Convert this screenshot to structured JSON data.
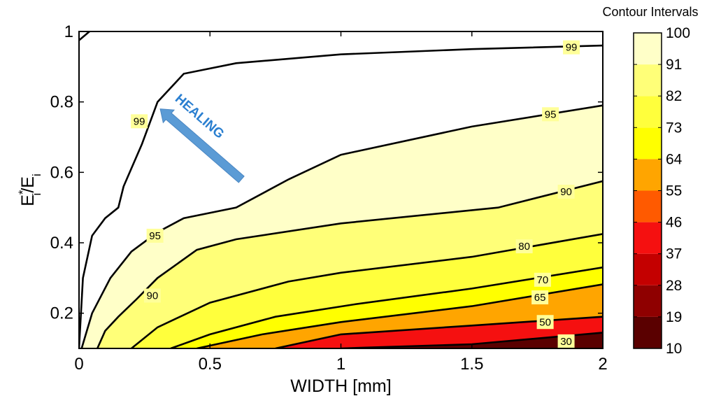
{
  "chart_data": {
    "type": "contour",
    "xlabel": "WIDTH [mm]",
    "ylabel_main": "E",
    "ylabel_sup": "*",
    "ylabel_sub": "i",
    "ylabel_slash": "/E",
    "ylabel_sub2": "i",
    "xlim": [
      0,
      2
    ],
    "ylim": [
      0.1,
      1
    ],
    "x_ticks": [
      0,
      0.5,
      1,
      1.5,
      2
    ],
    "x_tick_labels": [
      "0",
      "0.5",
      "1",
      "1.5",
      "2"
    ],
    "y_ticks": [
      0.2,
      0.4,
      0.6,
      0.8,
      1
    ],
    "y_tick_labels": [
      "0.2",
      "0.4",
      "0.6",
      "0.8",
      "1"
    ],
    "colorbar": {
      "title": "Contour Intervals",
      "levels": [
        10,
        19,
        28,
        37,
        46,
        55,
        64,
        73,
        82,
        91,
        100
      ],
      "level_labels": [
        "10",
        "19",
        "28",
        "37",
        "46",
        "55",
        "64",
        "73",
        "82",
        "91",
        "100"
      ],
      "colors": [
        "#5a0000",
        "#8f0000",
        "#c40000",
        "#f51010",
        "#ff5a00",
        "#ffa500",
        "#ffff00",
        "#ffff3c",
        "#ffff78",
        "#ffffc8"
      ]
    },
    "contours": [
      {
        "level": 30,
        "label": "30",
        "label_at": [
          1.86,
          0.12
        ],
        "fill": "#5a0000",
        "points": [
          [
            1.0,
            0.1
          ],
          [
            1.5,
            0.112
          ],
          [
            2.0,
            0.145
          ],
          [
            2.0,
            0.1
          ]
        ]
      },
      {
        "level": 50,
        "label": "50",
        "label_at": [
          1.78,
          0.175
        ],
        "fill": "#f51010",
        "points": [
          [
            0.75,
            0.1
          ],
          [
            1.0,
            0.14
          ],
          [
            1.5,
            0.165
          ],
          [
            2.0,
            0.19
          ],
          [
            2.0,
            0.1
          ]
        ]
      },
      {
        "level": 65,
        "label": "65",
        "label_at": [
          1.76,
          0.245
        ],
        "fill": "#ffa500",
        "points": [
          [
            0.45,
            0.1
          ],
          [
            0.7,
            0.14
          ],
          [
            1.0,
            0.175
          ],
          [
            1.5,
            0.22
          ],
          [
            2.0,
            0.282
          ],
          [
            2.0,
            0.1
          ]
        ]
      },
      {
        "level": 70,
        "label": "70",
        "label_at": [
          1.77,
          0.295
        ],
        "fill": "#ffff00",
        "points": [
          [
            0.35,
            0.1
          ],
          [
            0.5,
            0.14
          ],
          [
            0.75,
            0.19
          ],
          [
            1.05,
            0.225
          ],
          [
            1.5,
            0.27
          ],
          [
            2.0,
            0.33
          ],
          [
            2.0,
            0.1
          ]
        ]
      },
      {
        "level": 80,
        "label": "80",
        "label_at": [
          1.7,
          0.39
        ],
        "fill": "#ffff3c",
        "points": [
          [
            0.2,
            0.1
          ],
          [
            0.3,
            0.16
          ],
          [
            0.5,
            0.23
          ],
          [
            0.8,
            0.29
          ],
          [
            1.0,
            0.315
          ],
          [
            1.5,
            0.36
          ],
          [
            2.0,
            0.425
          ],
          [
            2.0,
            0.1
          ]
        ]
      },
      {
        "level": 90,
        "label": "90",
        "label_at": [
          1.86,
          0.545
        ],
        "fill": "#ffff78",
        "points": [
          [
            0.07,
            0.1
          ],
          [
            0.1,
            0.15
          ],
          [
            0.15,
            0.19
          ],
          [
            0.22,
            0.24
          ],
          [
            0.3,
            0.3
          ],
          [
            0.45,
            0.38
          ],
          [
            0.6,
            0.41
          ],
          [
            1.0,
            0.455
          ],
          [
            1.6,
            0.5
          ],
          [
            2.0,
            0.575
          ],
          [
            2.0,
            0.1
          ]
        ]
      },
      {
        "level": 95,
        "label": "95",
        "label_at": [
          1.8,
          0.765
        ],
        "fill": "#ffffc8",
        "points": [
          [
            0.01,
            0.1
          ],
          [
            0.05,
            0.2
          ],
          [
            0.12,
            0.3
          ],
          [
            0.2,
            0.375
          ],
          [
            0.3,
            0.43
          ],
          [
            0.4,
            0.47
          ],
          [
            0.6,
            0.5
          ],
          [
            0.8,
            0.58
          ],
          [
            1.0,
            0.65
          ],
          [
            1.5,
            0.73
          ],
          [
            2.0,
            0.79
          ],
          [
            2.0,
            0.1
          ]
        ]
      },
      {
        "level": 99,
        "label": "99",
        "label_at": [
          1.88,
          0.955
        ],
        "fill": "#ffffff",
        "points": [
          [
            0.0,
            0.1
          ],
          [
            0.015,
            0.3
          ],
          [
            0.05,
            0.42
          ],
          [
            0.1,
            0.47
          ],
          [
            0.15,
            0.5
          ],
          [
            0.17,
            0.56
          ],
          [
            0.24,
            0.68
          ],
          [
            0.3,
            0.8
          ],
          [
            0.4,
            0.88
          ],
          [
            0.6,
            0.91
          ],
          [
            1.0,
            0.935
          ],
          [
            1.5,
            0.95
          ],
          [
            2.0,
            0.96
          ],
          [
            2.0,
            1.0
          ],
          [
            0.0,
            1.0
          ]
        ]
      }
    ],
    "extra_line_points": [
      [
        0.0,
        0.975
      ],
      [
        0.04,
        1.0
      ]
    ],
    "extra_labels": [
      {
        "label": "99",
        "label_at": [
          0.23,
          0.745
        ]
      },
      {
        "label": "95",
        "label_at": [
          0.29,
          0.42
        ]
      },
      {
        "label": "90",
        "label_at": [
          0.28,
          0.25
        ]
      }
    ],
    "annotation": {
      "text": "HEALING",
      "arrow_from": [
        0.62,
        0.58
      ],
      "arrow_to": [
        0.31,
        0.78
      ],
      "text_at": [
        0.45,
        0.75
      ]
    }
  }
}
